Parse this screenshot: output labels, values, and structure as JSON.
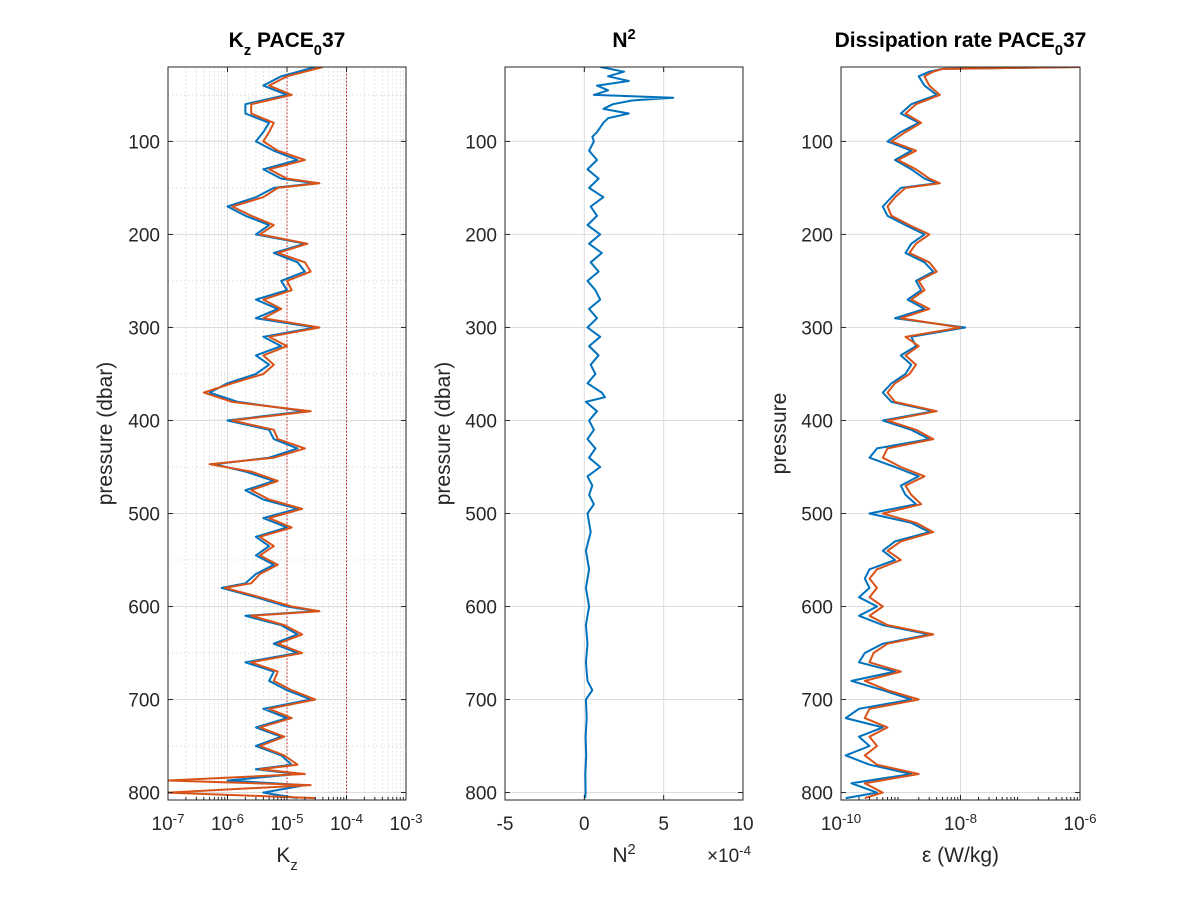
{
  "chart_data": [
    {
      "type": "line",
      "title": "K_z PACE_0 37",
      "title_parts": {
        "base": "K",
        "sub": "z",
        "mid": " PACE",
        "sub2": "0",
        "end": "37"
      },
      "xlabel": "K_z",
      "xlabel_parts": {
        "base": "K",
        "sub": "z"
      },
      "ylabel": "pressure (dbar)",
      "xscale": "log",
      "xlim": [
        1e-07,
        0.001
      ],
      "ylim": [
        20,
        808
      ],
      "yreverse": true,
      "xticks": [
        1e-07,
        1e-06,
        1e-05,
        0.0001,
        0.001
      ],
      "xtick_labels": [
        {
          "b": "10",
          "e": "-7"
        },
        {
          "b": "10",
          "e": "-6"
        },
        {
          "b": "10",
          "e": "-5"
        },
        {
          "b": "10",
          "e": "-4"
        },
        {
          "b": "10",
          "e": "-3"
        }
      ],
      "yticks": [
        100,
        200,
        300,
        400,
        500,
        600,
        700,
        800
      ],
      "grid": "major+minor",
      "reference_lines_x": [
        1e-05,
        0.0001
      ],
      "series": [
        {
          "color": "#0072BD",
          "y": [
            20,
            30,
            40,
            50,
            60,
            70,
            80,
            90,
            100,
            110,
            120,
            130,
            140,
            145,
            150,
            160,
            170,
            180,
            190,
            200,
            210,
            220,
            230,
            240,
            250,
            260,
            270,
            280,
            290,
            300,
            310,
            320,
            330,
            340,
            350,
            360,
            370,
            380,
            390,
            400,
            410,
            420,
            430,
            440,
            447,
            455,
            465,
            475,
            485,
            495,
            505,
            515,
            525,
            535,
            545,
            555,
            565,
            575,
            580,
            590,
            600,
            605,
            610,
            620,
            630,
            640,
            650,
            660,
            670,
            680,
            690,
            700,
            710,
            720,
            730,
            740,
            750,
            760,
            770,
            775,
            780,
            787,
            792,
            800,
            806
          ],
          "x": [
            3e-05,
            8e-06,
            4e-06,
            1e-05,
            2e-06,
            2e-06,
            5e-06,
            4e-06,
            3e-06,
            6e-06,
            1.5e-05,
            4e-06,
            8e-06,
            3e-05,
            6e-06,
            3e-06,
            1e-06,
            2e-06,
            5e-06,
            3e-06,
            2e-05,
            6e-06,
            1.5e-05,
            2e-05,
            8e-06,
            1e-05,
            3e-06,
            7e-06,
            3e-06,
            3e-05,
            4e-06,
            8e-06,
            3e-06,
            5e-06,
            3e-06,
            1e-06,
            5e-07,
            1.5e-06,
            2e-05,
            1e-06,
            5e-06,
            6e-06,
            1.5e-05,
            5e-06,
            6e-07,
            2e-06,
            6e-06,
            2e-06,
            4e-06,
            1.5e-05,
            4e-06,
            1e-05,
            3e-06,
            5e-06,
            3e-06,
            6e-06,
            3e-06,
            2e-06,
            8e-07,
            3e-06,
            1e-05,
            3e-05,
            2e-06,
            8e-06,
            1.5e-05,
            6e-06,
            1.5e-05,
            2e-06,
            6e-06,
            5e-06,
            1e-05,
            2.5e-05,
            4e-06,
            1e-05,
            3e-06,
            8e-06,
            3e-06,
            8e-06,
            1.2e-05,
            3e-06,
            1.5e-05,
            1e-06,
            2e-05,
            4e-06,
            1.5e-05
          ]
        },
        {
          "color": "#D95319",
          "y": [
            20,
            30,
            40,
            50,
            60,
            70,
            80,
            90,
            100,
            110,
            120,
            130,
            140,
            145,
            150,
            160,
            170,
            180,
            190,
            200,
            210,
            220,
            230,
            240,
            250,
            260,
            270,
            280,
            290,
            300,
            310,
            320,
            330,
            340,
            350,
            360,
            370,
            380,
            390,
            400,
            410,
            420,
            430,
            440,
            447,
            455,
            465,
            475,
            485,
            495,
            505,
            515,
            525,
            535,
            545,
            555,
            565,
            575,
            580,
            590,
            600,
            605,
            610,
            620,
            630,
            640,
            650,
            660,
            670,
            680,
            690,
            700,
            710,
            720,
            730,
            740,
            750,
            760,
            770,
            775,
            780,
            787,
            792,
            800,
            806
          ],
          "x": [
            4e-05,
            1e-05,
            5e-06,
            1.2e-05,
            2.5e-06,
            2.5e-06,
            6e-06,
            5e-06,
            4e-06,
            7e-06,
            2e-05,
            5e-06,
            1e-05,
            3.5e-05,
            7e-06,
            4e-06,
            1.2e-06,
            2.5e-06,
            6e-06,
            3.5e-06,
            2.2e-05,
            7e-06,
            2e-05,
            2.5e-05,
            1e-05,
            1.2e-05,
            4e-06,
            8e-06,
            4e-06,
            3.5e-05,
            5e-06,
            1e-05,
            4e-06,
            6e-06,
            4e-06,
            1.2e-06,
            4e-07,
            1.2e-06,
            2.5e-05,
            1.2e-06,
            6e-06,
            7e-06,
            2e-05,
            6e-06,
            5e-07,
            2.5e-06,
            7e-06,
            2.5e-06,
            5e-06,
            1.8e-05,
            5e-06,
            1.2e-05,
            3.5e-06,
            6e-06,
            3.5e-06,
            7e-06,
            3.5e-06,
            2.5e-06,
            9e-07,
            3.5e-06,
            1.2e-05,
            3.5e-05,
            2.5e-06,
            9e-06,
            1.8e-05,
            7e-06,
            1.8e-05,
            2.5e-06,
            7e-06,
            6e-06,
            1.2e-05,
            3e-05,
            5e-06,
            1.2e-05,
            3.5e-06,
            9e-06,
            3.5e-06,
            9e-06,
            1.5e-05,
            3.5e-06,
            2e-05,
            1e-07,
            2.5e-05,
            1e-07,
            3e-05
          ]
        }
      ]
    },
    {
      "type": "line",
      "title": "N^2",
      "title_parts": {
        "base": "N",
        "sup": "2"
      },
      "xlabel": "N^2",
      "xlabel_parts": {
        "base": "N",
        "sup": "2"
      },
      "ylabel": "pressure (dbar)",
      "xscale": "linear",
      "xlim": [
        -5,
        10
      ],
      "ylim": [
        20,
        808
      ],
      "yreverse": true,
      "xticks": [
        -5,
        0,
        5,
        10
      ],
      "xtick_labels": [
        "-5",
        "0",
        "5",
        "10"
      ],
      "yticks": [
        100,
        200,
        300,
        400,
        500,
        600,
        700,
        800
      ],
      "x_multiplier": {
        "text": "×10",
        "exp": "-4"
      },
      "grid": "major",
      "series": [
        {
          "color": "#0072BD",
          "y": [
            20,
            25,
            30,
            35,
            40,
            45,
            50,
            53,
            56,
            60,
            65,
            70,
            75,
            80,
            85,
            90,
            95,
            100,
            110,
            120,
            130,
            140,
            150,
            160,
            170,
            180,
            190,
            200,
            210,
            220,
            230,
            240,
            250,
            260,
            270,
            280,
            290,
            300,
            310,
            320,
            330,
            340,
            350,
            360,
            370,
            375,
            380,
            390,
            400,
            410,
            420,
            430,
            440,
            450,
            460,
            470,
            480,
            490,
            500,
            520,
            540,
            560,
            580,
            600,
            620,
            640,
            660,
            680,
            690,
            700,
            720,
            740,
            760,
            780,
            800,
            806
          ],
          "x": [
            1.0,
            2.5,
            1.5,
            2.8,
            0.8,
            1.5,
            0.6,
            5.6,
            3.0,
            1.8,
            1.2,
            2.8,
            1.5,
            1.2,
            1.0,
            0.8,
            0.5,
            0.6,
            0.3,
            0.8,
            0.2,
            0.9,
            0.3,
            1.2,
            0.4,
            0.8,
            0.2,
            1.0,
            0.3,
            1.1,
            0.4,
            0.9,
            0.2,
            0.7,
            1.0,
            0.3,
            0.8,
            0.2,
            1.0,
            0.3,
            0.9,
            0.4,
            0.7,
            0.2,
            1.1,
            1.3,
            0.1,
            0.8,
            0.3,
            0.6,
            0.2,
            0.7,
            0.3,
            1.0,
            0.2,
            0.5,
            0.3,
            0.6,
            0.2,
            0.4,
            0.1,
            0.3,
            0.1,
            0.3,
            0.1,
            0.2,
            0.1,
            0.2,
            0.5,
            0.1,
            0.15,
            0.08,
            0.12,
            0.06,
            0.08,
            0.05
          ]
        }
      ]
    },
    {
      "type": "line",
      "title": "Dissipation rate PACE_0 37",
      "title_parts": {
        "base": "Dissipation rate PACE",
        "sub": "0",
        "end": "37"
      },
      "xlabel": "ε (W/kg)",
      "ylabel": "pressure",
      "xscale": "log",
      "xlim": [
        1e-10,
        1e-06
      ],
      "ylim": [
        20,
        808
      ],
      "yreverse": true,
      "xticks": [
        1e-10,
        1e-08,
        1e-06
      ],
      "xtick_labels": [
        {
          "b": "10",
          "e": "-10"
        },
        {
          "b": "10",
          "e": "-8"
        },
        {
          "b": "10",
          "e": "-6"
        }
      ],
      "yticks": [
        100,
        200,
        300,
        400,
        500,
        600,
        700,
        800
      ],
      "grid": "major",
      "series": [
        {
          "color": "#0072BD",
          "y": [
            20,
            22,
            25,
            30,
            40,
            50,
            60,
            70,
            80,
            90,
            100,
            110,
            120,
            130,
            140,
            145,
            150,
            160,
            170,
            180,
            190,
            200,
            210,
            220,
            230,
            240,
            250,
            260,
            270,
            280,
            290,
            300,
            310,
            320,
            330,
            340,
            350,
            360,
            370,
            380,
            390,
            400,
            410,
            420,
            430,
            440,
            450,
            460,
            470,
            480,
            490,
            500,
            510,
            520,
            530,
            540,
            550,
            560,
            570,
            580,
            590,
            600,
            610,
            620,
            630,
            640,
            650,
            660,
            670,
            680,
            690,
            700,
            710,
            720,
            730,
            740,
            750,
            760,
            770,
            780,
            790,
            800,
            806
          ],
          "x": [
            1e-06,
            5e-09,
            3e-09,
            2e-09,
            2.5e-09,
            4e-09,
            1.5e-09,
            1e-09,
            2e-09,
            1e-09,
            6e-10,
            1.5e-09,
            8e-10,
            1.5e-09,
            2.5e-09,
            4e-09,
            1e-09,
            7e-10,
            5e-10,
            6e-10,
            1.2e-09,
            2.5e-09,
            1.5e-09,
            1.2e-09,
            2.5e-09,
            3.5e-09,
            1.8e-09,
            2.2e-09,
            1.3e-09,
            2.5e-09,
            8e-10,
            1.2e-08,
            1.5e-09,
            1.8e-09,
            1e-09,
            1.5e-09,
            1.2e-09,
            7e-10,
            5e-10,
            7e-10,
            3.5e-09,
            5e-10,
            1.5e-09,
            3e-09,
            4e-10,
            3e-10,
            8e-10,
            2e-09,
            1e-09,
            1.2e-09,
            1.8e-09,
            3e-10,
            1.5e-09,
            3e-09,
            8e-10,
            5e-10,
            8e-10,
            3e-10,
            2.5e-10,
            3e-10,
            2e-10,
            4e-10,
            2e-10,
            5e-10,
            3e-09,
            5e-10,
            2.5e-10,
            2e-10,
            8e-10,
            1.5e-10,
            5e-10,
            1.5e-09,
            2e-10,
            1.2e-10,
            5e-10,
            2e-10,
            3e-10,
            1.2e-10,
            3e-10,
            1.5e-09,
            1.5e-10,
            4e-10,
            1.2e-10
          ]
        },
        {
          "color": "#D95319",
          "y": [
            20,
            22,
            25,
            30,
            40,
            50,
            60,
            70,
            80,
            90,
            100,
            110,
            120,
            130,
            140,
            145,
            150,
            160,
            170,
            180,
            190,
            200,
            210,
            220,
            230,
            240,
            250,
            260,
            270,
            280,
            290,
            300,
            310,
            320,
            330,
            340,
            350,
            360,
            370,
            380,
            390,
            400,
            410,
            420,
            430,
            440,
            450,
            460,
            470,
            480,
            490,
            500,
            510,
            520,
            530,
            540,
            550,
            560,
            570,
            580,
            590,
            600,
            610,
            620,
            630,
            640,
            650,
            660,
            670,
            680,
            690,
            700,
            710,
            720,
            730,
            740,
            750,
            760,
            770,
            780,
            790,
            800,
            806
          ],
          "x": [
            1e-06,
            5e-09,
            3.5e-09,
            2.5e-09,
            3e-09,
            4.5e-09,
            1.8e-09,
            1.2e-09,
            2.2e-09,
            1.2e-09,
            7e-10,
            1.8e-09,
            9e-10,
            1.8e-09,
            3e-09,
            4.5e-09,
            1.2e-09,
            8e-10,
            6e-10,
            7e-10,
            1.4e-09,
            3e-09,
            1.8e-09,
            1.4e-09,
            3e-09,
            4e-09,
            2e-09,
            2.5e-09,
            1.5e-09,
            3e-09,
            1e-09,
            1e-08,
            1.2e-09,
            2e-09,
            1.2e-09,
            1.8e-09,
            1.4e-09,
            8e-10,
            6e-10,
            8e-10,
            4e-09,
            6e-10,
            1.8e-09,
            3.5e-09,
            6e-10,
            5e-10,
            1e-09,
            2.5e-09,
            1.2e-09,
            1.5e-09,
            2.2e-09,
            5e-10,
            1.8e-09,
            3.5e-09,
            1e-09,
            6e-10,
            1e-09,
            4e-10,
            3e-10,
            4e-10,
            3e-10,
            5e-10,
            3e-10,
            6e-10,
            3.5e-09,
            6e-10,
            3.5e-10,
            3e-10,
            1e-09,
            2.5e-10,
            6e-10,
            2e-09,
            3e-10,
            2.5e-10,
            6e-10,
            3e-10,
            4e-10,
            2.5e-10,
            4e-10,
            2e-09,
            2.5e-10,
            5e-10,
            2.5e-10
          ]
        }
      ]
    }
  ]
}
